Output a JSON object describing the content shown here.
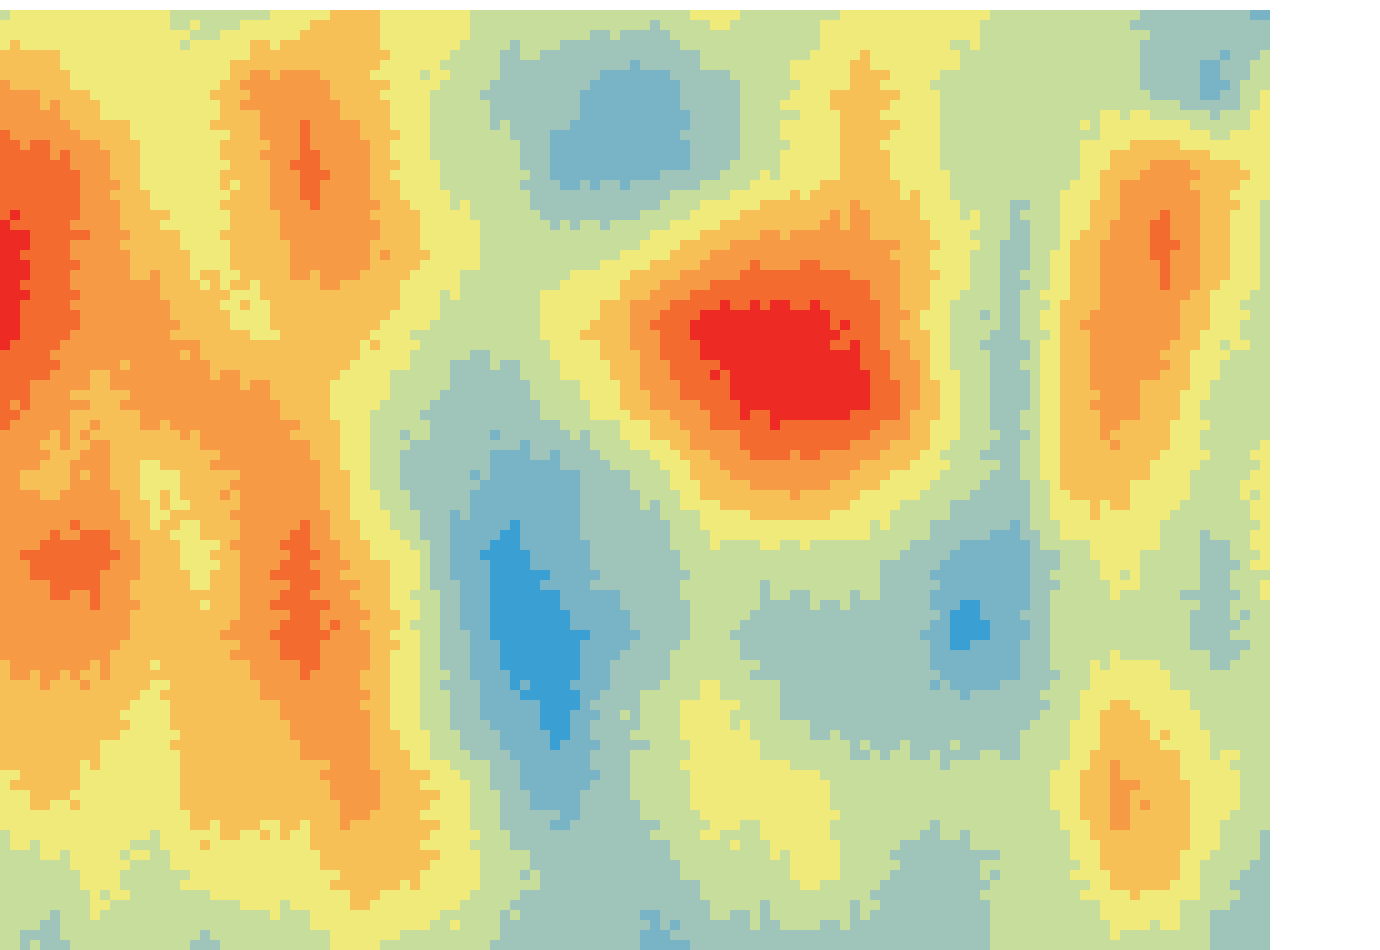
{
  "chart_data": {
    "type": "heatmap",
    "title": "",
    "xlabel": "",
    "ylabel": "",
    "colorbar": false,
    "legend": "none",
    "grid": false,
    "levels": 9,
    "colormap": [
      "#3a9fd3",
      "#79b4c6",
      "#9fc5bb",
      "#c6dd9c",
      "#efea7a",
      "#f6c057",
      "#f69a45",
      "#f36b2e",
      "#ee2a24"
    ],
    "field_rows": [
      [
        3,
        4,
        4,
        4,
        3,
        3,
        4,
        5,
        4,
        4,
        3,
        3,
        3,
        3,
        4,
        3,
        3,
        4,
        4,
        4,
        3,
        3,
        3,
        2,
        2,
        1
      ],
      [
        6,
        5,
        4,
        4,
        4,
        6,
        6,
        5,
        4,
        3,
        2,
        2,
        1,
        1,
        2,
        3,
        4,
        5,
        4,
        3,
        3,
        3,
        3,
        2,
        1,
        4
      ],
      [
        7,
        7,
        6,
        4,
        4,
        5,
        7,
        6,
        4,
        3,
        3,
        1,
        1,
        1,
        2,
        3,
        4,
        5,
        4,
        3,
        3,
        3,
        5,
        6,
        5,
        4
      ],
      [
        8,
        7,
        6,
        5,
        4,
        5,
        6,
        6,
        5,
        4,
        3,
        3,
        3,
        4,
        5,
        6,
        6,
        6,
        5,
        4,
        2,
        4,
        6,
        7,
        5,
        3
      ],
      [
        8,
        7,
        6,
        6,
        5,
        4,
        5,
        5,
        4,
        3,
        3,
        4,
        5,
        7,
        8,
        8,
        8,
        7,
        5,
        3,
        2,
        5,
        6,
        6,
        4,
        3
      ],
      [
        7,
        6,
        5,
        6,
        6,
        6,
        5,
        4,
        3,
        2,
        2,
        3,
        4,
        6,
        7,
        8,
        8,
        8,
        6,
        3,
        2,
        5,
        6,
        5,
        3,
        3
      ],
      [
        6,
        5,
        6,
        4,
        5,
        6,
        6,
        4,
        2,
        2,
        1,
        1,
        2,
        3,
        5,
        6,
        6,
        5,
        4,
        3,
        2,
        5,
        5,
        4,
        3,
        4
      ],
      [
        6,
        7,
        7,
        5,
        4,
        6,
        7,
        5,
        4,
        1,
        0,
        1,
        2,
        2,
        3,
        3,
        3,
        3,
        2,
        1,
        1,
        3,
        4,
        3,
        2,
        4
      ],
      [
        6,
        6,
        6,
        5,
        5,
        6,
        7,
        6,
        4,
        2,
        0,
        0,
        1,
        2,
        3,
        2,
        2,
        2,
        2,
        0,
        1,
        3,
        3,
        3,
        2,
        3
      ],
      [
        5,
        5,
        5,
        4,
        5,
        5,
        6,
        6,
        4,
        2,
        1,
        0,
        2,
        3,
        4,
        3,
        2,
        2,
        2,
        2,
        2,
        3,
        5,
        4,
        3,
        3
      ],
      [
        4,
        5,
        4,
        4,
        5,
        5,
        5,
        6,
        5,
        4,
        2,
        1,
        2,
        3,
        4,
        4,
        4,
        3,
        3,
        3,
        3,
        4,
        6,
        5,
        4,
        3
      ],
      [
        3,
        3,
        4,
        3,
        4,
        4,
        4,
        5,
        5,
        4,
        3,
        2,
        2,
        2,
        3,
        3,
        4,
        3,
        2,
        2,
        3,
        3,
        5,
        5,
        3,
        2
      ],
      [
        3,
        2,
        3,
        3,
        2,
        3,
        3,
        4,
        3,
        3,
        2,
        2,
        2,
        1,
        2,
        2,
        2,
        2,
        2,
        2,
        3,
        3,
        3,
        3,
        2,
        2
      ]
    ]
  }
}
